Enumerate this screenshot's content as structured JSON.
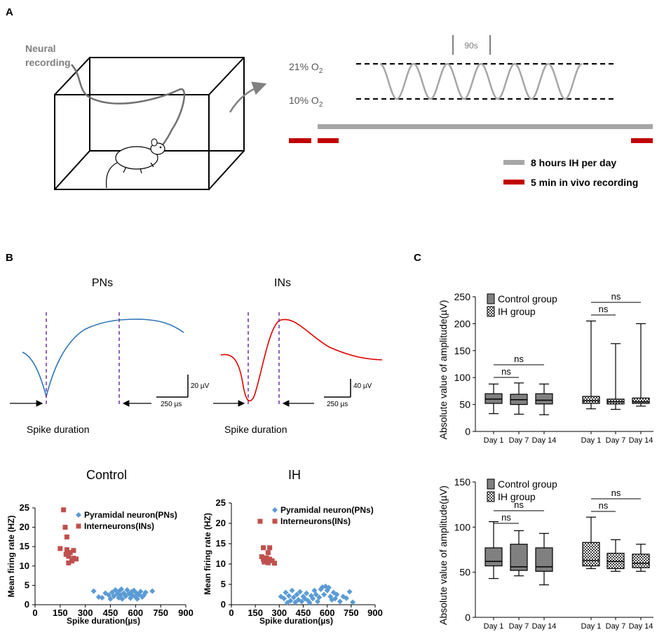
{
  "panel_labels": {
    "a": "A",
    "b": "B",
    "c": "C"
  },
  "panel_a": {
    "neural_recording_line1": "Neural",
    "neural_recording_line2": "recording",
    "period_label": "90s",
    "o2_high_prefix": "21% O",
    "o2_high_sub": "2",
    "o2_low_prefix": "10% O",
    "o2_low_sub": "2",
    "cycles": 6,
    "legend": [
      {
        "label": "8 hours IH per day",
        "color": "#a6a6a6"
      },
      {
        "label": "5 min in vivo recording",
        "color": "#c00000"
      }
    ]
  },
  "panel_b_waveforms": {
    "pns_title": "PNs",
    "ins_title": "INs",
    "pns_scale_v": "20 µV",
    "pns_scale_t": "250 µs",
    "ins_scale_v": "40 µV",
    "ins_scale_t": "250 µs",
    "spike_duration_label": "Spike duration",
    "pns_color": "#2e75b6",
    "ins_color": "#e00000",
    "marker_color": "#7030a0"
  },
  "colors": {
    "pn": "#5b9bd5",
    "in": "#c0504d",
    "box": "#808080"
  },
  "chart_data": [
    {
      "type": "scatter",
      "title": "Control",
      "xlabel": "Spike duration(µs)",
      "ylabel": "Mean firing rate (HZ)",
      "xlim": [
        0,
        900
      ],
      "ylim": [
        0,
        25
      ],
      "xticks": [
        0,
        150,
        300,
        450,
        600,
        750,
        900
      ],
      "yticks": [
        0,
        5,
        10,
        15,
        20,
        25
      ],
      "series": [
        {
          "name": "Pyramidal neuron(PNs)",
          "marker": "diamond",
          "points": [
            [
              350,
              3.5
            ],
            [
              380,
              2
            ],
            [
              400,
              1.8
            ],
            [
              420,
              3
            ],
            [
              440,
              2.5
            ],
            [
              450,
              1.5
            ],
            [
              460,
              3.2
            ],
            [
              470,
              2.2
            ],
            [
              480,
              3.8
            ],
            [
              490,
              2.8
            ],
            [
              500,
              1.8
            ],
            [
              505,
              3.6
            ],
            [
              510,
              2.5
            ],
            [
              515,
              4
            ],
            [
              520,
              1.5
            ],
            [
              530,
              3
            ],
            [
              540,
              2.2
            ],
            [
              550,
              3.8
            ],
            [
              560,
              2.8
            ],
            [
              570,
              1.7
            ],
            [
              575,
              3.3
            ],
            [
              580,
              2.5
            ],
            [
              590,
              3.7
            ],
            [
              600,
              2
            ],
            [
              605,
              3
            ],
            [
              610,
              1.5
            ],
            [
              620,
              2.6
            ],
            [
              630,
              3.4
            ],
            [
              640,
              2
            ],
            [
              650,
              2.5
            ],
            [
              660,
              3.2
            ],
            [
              700,
              3.5
            ]
          ]
        },
        {
          "name": "Interneurons(INs)",
          "marker": "square",
          "points": [
            [
              170,
              24.5
            ],
            [
              180,
              20
            ],
            [
              190,
              17.5
            ],
            [
              150,
              14.5
            ],
            [
              190,
              14.2
            ],
            [
              210,
              13.5
            ],
            [
              230,
              14
            ],
            [
              200,
              12.5
            ],
            [
              230,
              12
            ],
            [
              245,
              11.8
            ],
            [
              220,
              11.3
            ],
            [
              200,
              10.8
            ],
            [
              185,
              13
            ]
          ]
        }
      ]
    },
    {
      "type": "scatter",
      "title": "IH",
      "xlabel": "Spike duration(µs)",
      "ylabel": "Mean firing rate (HZ)",
      "xlim": [
        0,
        900
      ],
      "ylim": [
        0,
        25
      ],
      "xticks": [
        0,
        150,
        300,
        450,
        600,
        750,
        900
      ],
      "yticks": [
        0,
        5,
        10,
        15,
        20,
        25
      ],
      "series": [
        {
          "name": "Pyramidal neuron(PNs)",
          "marker": "diamond",
          "points": [
            [
              310,
              2
            ],
            [
              330,
              1.5
            ],
            [
              340,
              3
            ],
            [
              350,
              0.5
            ],
            [
              360,
              2.2
            ],
            [
              370,
              1
            ],
            [
              380,
              3.5
            ],
            [
              390,
              1.8
            ],
            [
              400,
              0.6
            ],
            [
              410,
              2.5
            ],
            [
              420,
              1.2
            ],
            [
              430,
              3.2
            ],
            [
              440,
              0.8
            ],
            [
              450,
              2
            ],
            [
              460,
              1.5
            ],
            [
              470,
              2.8
            ],
            [
              480,
              1
            ],
            [
              490,
              0.5
            ],
            [
              500,
              2.2
            ],
            [
              510,
              1.5
            ],
            [
              520,
              3.5
            ],
            [
              530,
              2.5
            ],
            [
              540,
              0.8
            ],
            [
              550,
              1.8
            ],
            [
              560,
              3.8
            ],
            [
              570,
              4.3
            ],
            [
              580,
              2.5
            ],
            [
              590,
              4.5
            ],
            [
              600,
              3.5
            ],
            [
              610,
              4.2
            ],
            [
              620,
              2
            ],
            [
              630,
              1.2
            ],
            [
              640,
              3
            ],
            [
              650,
              1.5
            ],
            [
              660,
              2.5
            ],
            [
              680,
              0.8
            ],
            [
              700,
              2
            ],
            [
              720,
              1.6
            ],
            [
              740,
              3.2
            ],
            [
              760,
              0.6
            ]
          ]
        },
        {
          "name": "Interneurons(INs)",
          "marker": "square",
          "points": [
            [
              180,
              20.5
            ],
            [
              200,
              14
            ],
            [
              240,
              14
            ],
            [
              230,
              12.8
            ],
            [
              190,
              11.8
            ],
            [
              200,
              11.2
            ],
            [
              210,
              11
            ],
            [
              220,
              11.5
            ],
            [
              240,
              11.2
            ],
            [
              205,
              10.5
            ],
            [
              230,
              10.3
            ],
            [
              255,
              10.8
            ],
            [
              270,
              10.2
            ]
          ]
        }
      ]
    },
    {
      "type": "boxplot",
      "ylabel": "Absolute value of amplitude(µV)",
      "ylim": [
        0,
        250
      ],
      "yticks": [
        0,
        50,
        100,
        150,
        200,
        250
      ],
      "categories": [
        "Day 1",
        "Day 7",
        "Day 14",
        "Day 1",
        "Day 7",
        "Day 14"
      ],
      "legend": [
        "Control group",
        "IH group"
      ],
      "boxes": [
        {
          "group": "Control group",
          "min": 33,
          "q1": 52,
          "median": 60,
          "q3": 70,
          "max": 88
        },
        {
          "group": "Control group",
          "min": 32,
          "q1": 50,
          "median": 59,
          "q3": 69,
          "max": 90
        },
        {
          "group": "Control group",
          "min": 31,
          "q1": 51,
          "median": 58,
          "q3": 70,
          "max": 88
        },
        {
          "group": "IH group",
          "min": 42,
          "q1": 52,
          "median": 57,
          "q3": 65,
          "max": 205
        },
        {
          "group": "IH group",
          "min": 41,
          "q1": 51,
          "median": 55,
          "q3": 60,
          "max": 163
        },
        {
          "group": "IH group",
          "min": 47,
          "q1": 52,
          "median": 55,
          "q3": 62,
          "max": 200
        }
      ],
      "comparisons": [
        {
          "from": 0,
          "to": 1,
          "label": "ns"
        },
        {
          "from": 0,
          "to": 2,
          "label": "ns"
        },
        {
          "from": 3,
          "to": 4,
          "label": "ns"
        },
        {
          "from": 3,
          "to": 5,
          "label": "ns"
        }
      ]
    },
    {
      "type": "boxplot",
      "ylabel": "Absolute value of amplitude(µV)",
      "ylim": [
        0,
        150
      ],
      "yticks": [
        0,
        50,
        100,
        150
      ],
      "categories": [
        "Day 1",
        "Day 7",
        "Day 14",
        "Day 1",
        "Day 7",
        "Day 14"
      ],
      "legend": [
        "Control group",
        "IH group"
      ],
      "boxes": [
        {
          "group": "Control group",
          "min": 43,
          "q1": 57,
          "median": 62,
          "q3": 77,
          "max": 106
        },
        {
          "group": "Control group",
          "min": 46,
          "q1": 52,
          "median": 56,
          "q3": 81,
          "max": 96
        },
        {
          "group": "Control group",
          "min": 36,
          "q1": 51,
          "median": 56,
          "q3": 77,
          "max": 93
        },
        {
          "group": "IH group",
          "min": 54,
          "q1": 57,
          "median": 63,
          "q3": 83,
          "max": 111
        },
        {
          "group": "IH group",
          "min": 51,
          "q1": 54,
          "median": 62,
          "q3": 71,
          "max": 86
        },
        {
          "group": "IH group",
          "min": 51,
          "q1": 55,
          "median": 60,
          "q3": 70,
          "max": 81
        }
      ],
      "comparisons": [
        {
          "from": 0,
          "to": 1,
          "label": "ns"
        },
        {
          "from": 0,
          "to": 2,
          "label": "ns"
        },
        {
          "from": 3,
          "to": 4,
          "label": "ns"
        },
        {
          "from": 3,
          "to": 5,
          "label": "ns"
        }
      ]
    }
  ]
}
